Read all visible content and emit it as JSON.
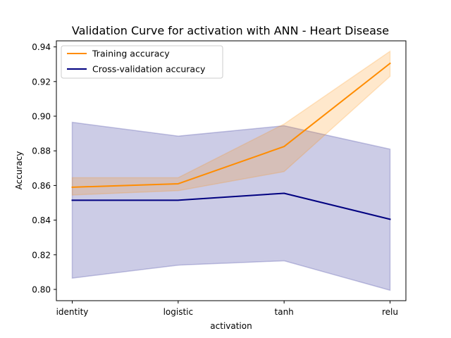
{
  "chart_data": {
    "type": "line",
    "title": "Validation Curve for activation with ANN - Heart Disease",
    "xlabel": "activation",
    "ylabel": "Accuracy",
    "categories": [
      "identity",
      "logistic",
      "tanh",
      "relu"
    ],
    "ylim": [
      0.7935,
      0.9435
    ],
    "yticks": [
      0.8,
      0.82,
      0.84,
      0.86,
      0.88,
      0.9,
      0.92,
      0.94
    ],
    "ytick_labels": [
      "0.80",
      "0.82",
      "0.84",
      "0.86",
      "0.88",
      "0.90",
      "0.92",
      "0.94"
    ],
    "grid": false,
    "legend_position": "top-left",
    "series": [
      {
        "name": "Training accuracy",
        "color": "#ff8c00",
        "values": [
          0.859,
          0.861,
          0.8825,
          0.9305
        ],
        "lower": [
          0.8545,
          0.857,
          0.868,
          0.923
        ],
        "upper": [
          0.8645,
          0.8645,
          0.8955,
          0.9375
        ]
      },
      {
        "name": "Cross-validation accuracy",
        "color": "#000080",
        "values": [
          0.8515,
          0.8515,
          0.8555,
          0.8405
        ],
        "lower": [
          0.8065,
          0.814,
          0.8165,
          0.7995
        ],
        "upper": [
          0.8965,
          0.8885,
          0.8945,
          0.881
        ]
      }
    ]
  }
}
